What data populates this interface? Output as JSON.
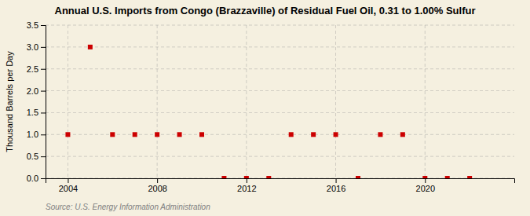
{
  "chart_data": {
    "type": "scatter",
    "title": "Annual U.S. Imports from Congo (Brazzaville) of Residual Fuel Oil, 0.31 to 1.00% Sulfur",
    "ylabel": "Thousand Barrels per Day",
    "source": "Source: U.S. Energy Information Administration",
    "x": [
      2004,
      2005,
      2006,
      2007,
      2008,
      2009,
      2010,
      2011,
      2012,
      2013,
      2014,
      2015,
      2016,
      2017,
      2018,
      2019,
      2020,
      2021,
      2022
    ],
    "values": [
      1.0,
      3.0,
      1.0,
      1.0,
      1.0,
      1.0,
      1.0,
      0.0,
      0.0,
      0.0,
      1.0,
      1.0,
      1.0,
      0.0,
      1.0,
      1.0,
      0.0,
      0.0,
      0.0
    ],
    "color": "#cc0000",
    "marker": "square",
    "xlim": [
      2003,
      2024
    ],
    "ylim": [
      0.0,
      3.5
    ],
    "xticks": [
      2004,
      2008,
      2012,
      2016,
      2020
    ],
    "yticks": [
      {
        "value": 0.0,
        "label": "0.0"
      },
      0.5,
      {
        "value": 1.0,
        "label": "1.0"
      },
      1.5,
      {
        "value": 2.0,
        "label": "2.0"
      },
      2.5,
      {
        "value": 3.0,
        "label": "3.0"
      },
      3.5
    ],
    "grid": true
  }
}
